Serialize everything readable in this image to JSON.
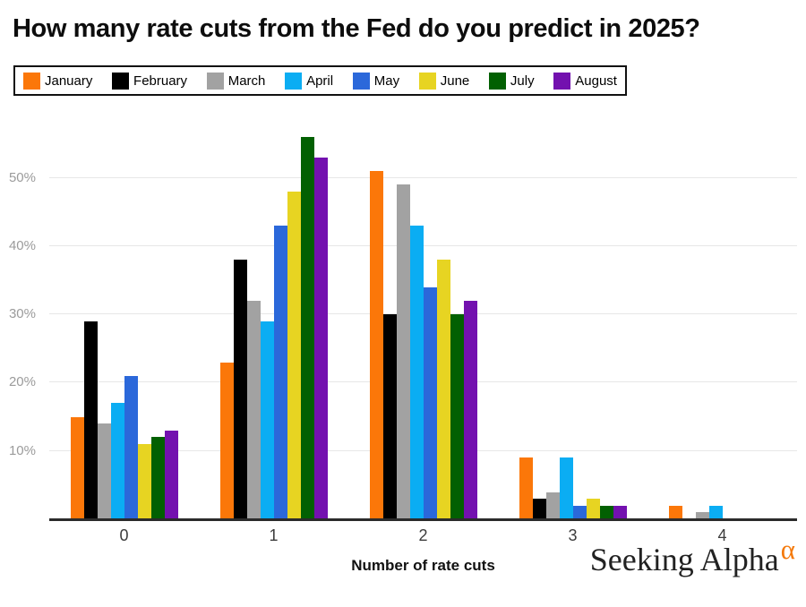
{
  "title": "How many rate cuts from the Fed do you predict in 2025?",
  "legend": {
    "items": [
      {
        "label": "January",
        "color": "#fb7709"
      },
      {
        "label": "February",
        "color": "#000000"
      },
      {
        "label": "March",
        "color": "#a2a2a2"
      },
      {
        "label": "April",
        "color": "#0badf3"
      },
      {
        "label": "May",
        "color": "#2b68da"
      },
      {
        "label": "June",
        "color": "#e7d422"
      },
      {
        "label": "July",
        "color": "#026002"
      },
      {
        "label": "August",
        "color": "#7311af"
      }
    ]
  },
  "chart_data": {
    "type": "bar",
    "title": "How many rate cuts from the Fed do you predict in 2025?",
    "categories": [
      "0",
      "1",
      "2",
      "3",
      "4"
    ],
    "series": [
      {
        "name": "January",
        "color": "#fb7709",
        "values": [
          15,
          23,
          51,
          9,
          2
        ]
      },
      {
        "name": "February",
        "color": "#000000",
        "values": [
          29,
          38,
          30,
          3,
          0
        ]
      },
      {
        "name": "March",
        "color": "#a2a2a2",
        "values": [
          14,
          32,
          49,
          4,
          1
        ]
      },
      {
        "name": "April",
        "color": "#0badf3",
        "values": [
          17,
          29,
          43,
          9,
          2
        ]
      },
      {
        "name": "May",
        "color": "#2b68da",
        "values": [
          21,
          43,
          34,
          2,
          0
        ]
      },
      {
        "name": "June",
        "color": "#e7d422",
        "values": [
          11,
          48,
          38,
          3,
          0
        ]
      },
      {
        "name": "July",
        "color": "#026002",
        "values": [
          12,
          56,
          30,
          2,
          0
        ]
      },
      {
        "name": "August",
        "color": "#7311af",
        "values": [
          13,
          53,
          32,
          2,
          0
        ]
      }
    ],
    "xlabel": "Number of rate cuts",
    "ylabel": "",
    "ylim": [
      0,
      59
    ],
    "yticks": [
      10,
      20,
      30,
      40,
      50
    ],
    "y_tick_suffix": "%",
    "grid": true,
    "legend_position": "top"
  },
  "branding": {
    "name": "Seeking Alpha",
    "alpha_symbol": "α",
    "alpha_color": "#f4790b"
  }
}
